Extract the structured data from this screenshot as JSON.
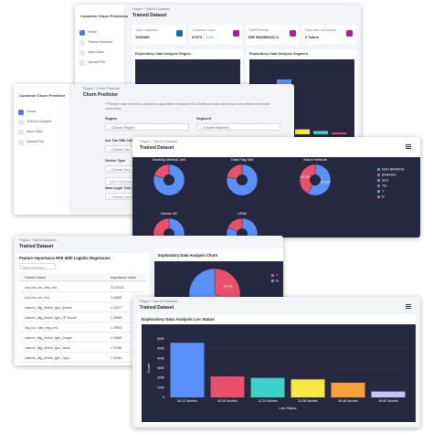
{
  "dashboard": {
    "app_name": "Customer Churn Prediction",
    "menu": [
      "Home",
      "Trained Dataset",
      "Input Data",
      "Upload File"
    ],
    "breadcrumb": "Pages / Trained Dataset",
    "title": "Trained Dataset",
    "stats": [
      {
        "label": "Total Customers",
        "value": "1000466"
      },
      {
        "label": "Customer Churn",
        "value": "67973",
        "badge": "+6.8%"
      },
      {
        "label": "Total Revenue",
        "value": "IDR 9542992211.0"
      },
      {
        "label": "Rata-rata Los Service",
        "value": "2 Tahun"
      }
    ],
    "region_chart": {
      "title": "Exploratory Data Analysis Region"
    },
    "segment_chart": {
      "type": "bar",
      "title": "Exploratory Data Analysis Segment",
      "values": [
        100,
        9,
        6,
        3
      ],
      "colors": [
        "#5b8ff9",
        "#f6e843",
        "#3fd0c9",
        "#e8506b"
      ]
    }
  },
  "predictor": {
    "app_name": "Customer Churn Predictor",
    "menu": [
      "Home",
      "Trained Dataset",
      "Input Data",
      "Upload File"
    ],
    "breadcrumb": "Pages / Churn Predictor",
    "title": "Churn Predictor",
    "notice": "**Please note that this prediction algorithm is based off of fictitious data and does not reflect real world scenarios.",
    "fields": [
      {
        "label": "Region",
        "placeholder": "-- Choose Region --"
      },
      {
        "label": "Segment",
        "placeholder": "-- Choose Segment --"
      },
      {
        "label": "Are The SIM CARD Used",
        "placeholder": "-- Choose Dat..."
      },
      {
        "label": "Device Type",
        "placeholder": "-- Choose Dev..."
      },
      {
        "label": "New Login This SIM",
        "placeholder": "-- Choose Los S..."
      }
    ],
    "keyword_placeholder": "Type a keyword..."
  },
  "eda_pies": {
    "breadcrumb": "Pages / Trained Dataset",
    "title": "Trained Dataset",
    "colors": [
      "#5b8ff9",
      "#e8506b"
    ],
    "pies": [
      {
        "title": "Banking Minimal Juni",
        "values": [
          80,
          20
        ]
      },
      {
        "title": "Data Flag Mid",
        "values": [
          78,
          22
        ]
      },
      {
        "title": "Attach Network",
        "values": [
          57.8,
          42.2
        ],
        "value_labels": [
          "57.8%",
          "42.2%"
        ]
      },
      {
        "title": "Device 4G",
        "values": [
          70,
          30
        ]
      },
      {
        "title": "USIM",
        "values": [
          82,
          18
        ]
      }
    ],
    "legend": [
      {
        "name": "NON BANKING",
        "color": "#5b8ff9"
      },
      {
        "name": "BANKING",
        "color": "#e8506b"
      },
      {
        "name": "SEG",
        "color": "#5b8ff9"
      },
      {
        "name": "TSI",
        "color": "#e8506b"
      },
      {
        "name": "Y",
        "color": "#5b8ff9"
      },
      {
        "name": "N",
        "color": "#e8506b"
      }
    ]
  },
  "features": {
    "breadcrumb": "Pages / Trained Dataset",
    "title": "Trained Dataset",
    "table": {
      "title": "Feature Importance RFE With Logistic Regression",
      "search_placeholder": "Type a keyword...",
      "header": [
        "Feature Name",
        "Importance Value"
      ],
      "rows": [
        [
          "sud_two_rec_data_mid",
          "22.03723"
        ],
        [
          "sud_two_rev_mid",
          "1.64929"
        ],
        [
          "calmom_flag_device_type_Iphone",
          "1.12877"
        ],
        [
          "calmom_flag_device_type_HP Device",
          "1.05985"
        ],
        [
          "flag_two_data_flag_mid",
          "1.05952"
        ],
        [
          "calmom_flag_device_type_Google",
          "1.03648"
        ],
        [
          "calmom_flag_device_type_Nokia",
          "1.02288"
        ],
        [
          "calmom_flag_device_type_Oppo",
          "1.01544"
        ]
      ]
    },
    "churn_chart": {
      "type": "pie",
      "title": "Exploratory Data Analysis Churn",
      "labels": [
        "Y",
        "N"
      ],
      "values": [
        32.9,
        67.1
      ],
      "value_labels": [
        "32.9%",
        "67.1%"
      ],
      "colors": [
        "#e8506b",
        "#5b8ff9"
      ]
    }
  },
  "los": {
    "breadcrumb": "Pages / Trained Dataset",
    "title": "Trained Dataset",
    "chart_data": {
      "type": "bar",
      "title": "Exploratory Data Analysis Los Status",
      "x_label": "Los Status",
      "y_label": "Count",
      "categories": [
        "06-12 Months",
        "03-06 Months",
        "12-24 Months",
        "24-36 Months",
        "36-48 Months",
        "48-60 Months"
      ],
      "values": [
        560000,
        215000,
        200000,
        185000,
        150000,
        60000
      ],
      "colors": [
        "#5b8ff9",
        "#e8506b",
        "#3fd0c9",
        "#f6e843",
        "#f7a13a",
        "#c9c3f5"
      ],
      "ylim": [
        0,
        600000
      ],
      "yticks": [
        0,
        {
          "value": 100000,
          "label": "100K"
        },
        {
          "value": 200000,
          "label": "200K"
        },
        {
          "value": 300000,
          "label": "300K"
        },
        {
          "value": 400000,
          "label": "400K"
        },
        {
          "value": 500000,
          "label": "500K"
        },
        {
          "value": 600000,
          "label": "600K"
        }
      ],
      "grid": true
    }
  }
}
